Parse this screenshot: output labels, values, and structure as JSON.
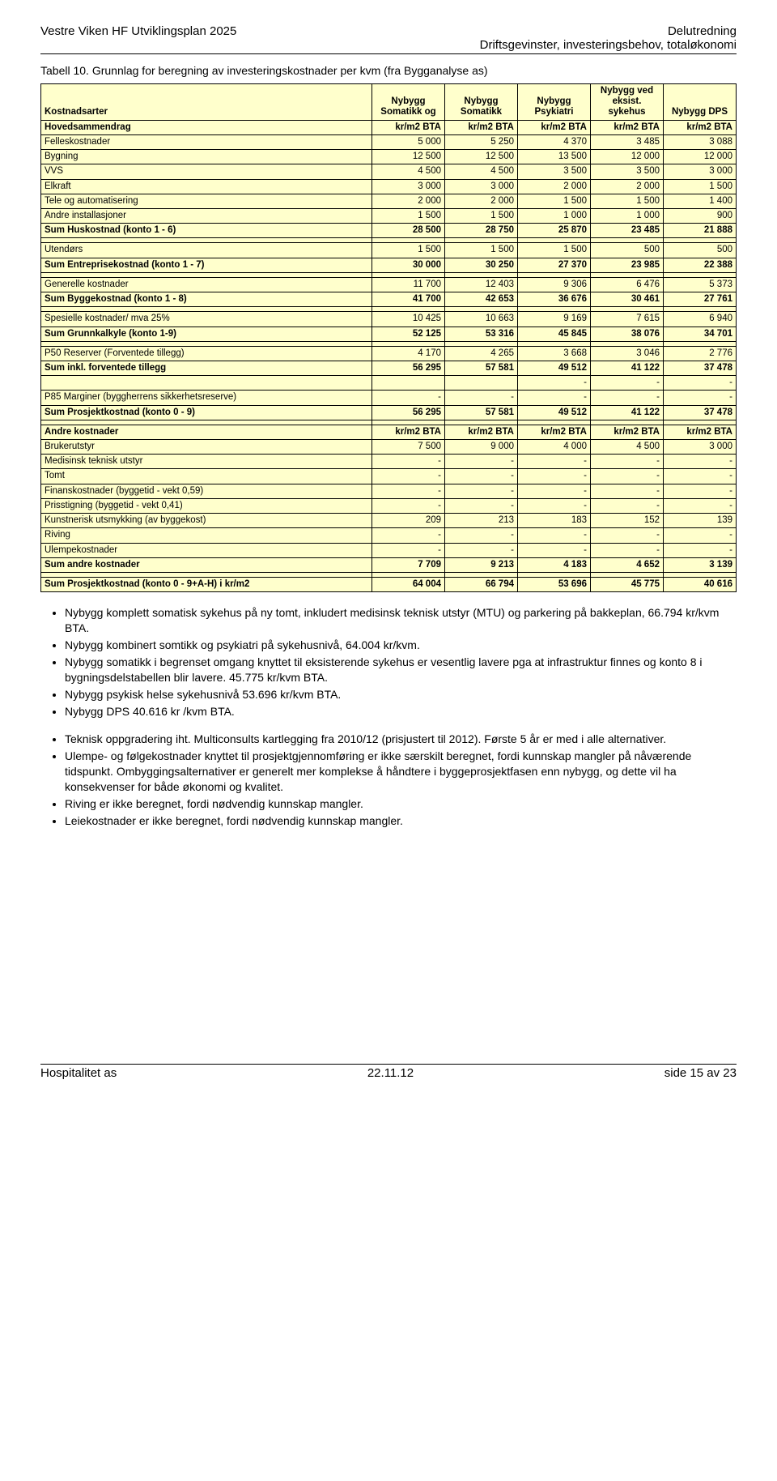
{
  "header": {
    "left_line1": "Vestre Viken HF Utviklingsplan 2025",
    "right_line1": "Delutredning",
    "right_line2": "Driftsgevinster, investeringsbehov, totaløkonomi"
  },
  "caption": "Tabell 10. Grunnlag for beregning av investeringskostnader per kvm (fra Bygganalyse as)",
  "table": {
    "bg_color": "#ffffcc",
    "border_color": "#000000",
    "col_label": "Kostnadsarter",
    "cols": [
      "Nybygg Somatikk og",
      "Nybygg Somatikk",
      "Nybygg Psykiatri",
      "Nybygg ved eksist. sykehus",
      "Nybygg DPS"
    ],
    "sections": [
      {
        "type": "header",
        "label": "Hovedsammendrag",
        "cells": [
          "kr/m2 BTA",
          "kr/m2 BTA",
          "kr/m2 BTA",
          "kr/m2 BTA",
          "kr/m2 BTA"
        ]
      },
      {
        "label": "Felleskostnader",
        "cells": [
          "5 000",
          "5 250",
          "4 370",
          "3 485",
          "3 088"
        ]
      },
      {
        "label": "Bygning",
        "cells": [
          "12 500",
          "12 500",
          "13 500",
          "12 000",
          "12 000"
        ]
      },
      {
        "label": "VVS",
        "cells": [
          "4 500",
          "4 500",
          "3 500",
          "3 500",
          "3 000"
        ]
      },
      {
        "label": "Elkraft",
        "cells": [
          "3 000",
          "3 000",
          "2 000",
          "2 000",
          "1 500"
        ]
      },
      {
        "label": "Tele og automatisering",
        "cells": [
          "2 000",
          "2 000",
          "1 500",
          "1 500",
          "1 400"
        ]
      },
      {
        "label": "Andre installasjoner",
        "cells": [
          "1 500",
          "1 500",
          "1 000",
          "1 000",
          "900"
        ]
      },
      {
        "type": "sum",
        "label": "Sum Huskostnad (konto 1 - 6)",
        "cells": [
          "28 500",
          "28 750",
          "25 870",
          "23 485",
          "21 888"
        ]
      },
      {
        "type": "spacer"
      },
      {
        "label": "Utendørs",
        "cells": [
          "1 500",
          "1 500",
          "1 500",
          "500",
          "500"
        ]
      },
      {
        "type": "sum",
        "label": "Sum Entreprisekostnad (konto 1 - 7)",
        "cells": [
          "30 000",
          "30 250",
          "27 370",
          "23 985",
          "22 388"
        ]
      },
      {
        "type": "spacer"
      },
      {
        "label": "Generelle kostnader",
        "cells": [
          "11 700",
          "12 403",
          "9 306",
          "6 476",
          "5 373"
        ]
      },
      {
        "type": "sum",
        "label": "Sum Byggekostnad (konto 1 - 8)",
        "cells": [
          "41 700",
          "42 653",
          "36 676",
          "30 461",
          "27 761"
        ]
      },
      {
        "type": "spacer"
      },
      {
        "label": "Spesielle kostnader/ mva 25%",
        "cells": [
          "10 425",
          "10 663",
          "9 169",
          "7 615",
          "6 940"
        ]
      },
      {
        "type": "sum",
        "label": "Sum Grunnkalkyle (konto 1-9)",
        "cells": [
          "52 125",
          "53 316",
          "45 845",
          "38 076",
          "34 701"
        ]
      },
      {
        "type": "spacer"
      },
      {
        "label": "P50 Reserver (Forventede tillegg)",
        "cells": [
          "4 170",
          "4 265",
          "3 668",
          "3 046",
          "2 776"
        ]
      },
      {
        "type": "sum",
        "label": "Sum inkl. forventede tillegg",
        "cells": [
          "56 295",
          "57 581",
          "49 512",
          "41 122",
          "37 478"
        ]
      },
      {
        "label": "",
        "cells": [
          "",
          "",
          "-",
          "-",
          "-"
        ]
      },
      {
        "label": "P85 Marginer (byggherrens sikkerhetsreserve)",
        "cells": [
          "-",
          "-",
          "-",
          "-",
          "-"
        ]
      },
      {
        "type": "sum",
        "label": "Sum Prosjektkostnad (konto 0 - 9)",
        "cells": [
          "56 295",
          "57 581",
          "49 512",
          "41 122",
          "37 478"
        ]
      },
      {
        "type": "spacer"
      },
      {
        "type": "header",
        "label": "Andre kostnader",
        "cells": [
          "kr/m2 BTA",
          "kr/m2 BTA",
          "kr/m2 BTA",
          "kr/m2 BTA",
          "kr/m2 BTA"
        ]
      },
      {
        "label": "Brukerutstyr",
        "cells": [
          "7 500",
          "9 000",
          "4 000",
          "4 500",
          "3 000"
        ]
      },
      {
        "label": "Medisinsk teknisk utstyr",
        "cells": [
          "-",
          "-",
          "-",
          "-",
          "-"
        ]
      },
      {
        "label": "Tomt",
        "cells": [
          "-",
          "-",
          "-",
          "-",
          "-"
        ]
      },
      {
        "label": "Finanskostnader (byggetid - vekt 0,59)",
        "cells": [
          "-",
          "-",
          "-",
          "-",
          "-"
        ]
      },
      {
        "label": "Prisstigning (byggetid - vekt 0,41)",
        "cells": [
          "-",
          "-",
          "-",
          "-",
          "-"
        ]
      },
      {
        "label": "Kunstnerisk utsmykking (av byggekost)",
        "cells": [
          "209",
          "213",
          "183",
          "152",
          "139"
        ]
      },
      {
        "label": "Riving",
        "cells": [
          "-",
          "-",
          "-",
          "-",
          "-"
        ]
      },
      {
        "label": "Ulempekostnader",
        "cells": [
          "-",
          "-",
          "-",
          "-",
          "-"
        ]
      },
      {
        "type": "sum",
        "label": "Sum andre kostnader",
        "cells": [
          "7 709",
          "9 213",
          "4 183",
          "4 652",
          "3 139"
        ]
      },
      {
        "type": "spacer"
      },
      {
        "type": "sum",
        "label": "Sum Prosjektkostnad (konto 0 - 9+A-H) i kr/m2",
        "cells": [
          "64 004",
          "66 794",
          "53 696",
          "45 775",
          "40 616"
        ]
      }
    ]
  },
  "bullets1": [
    "Nybygg komplett somatisk sykehus på ny tomt, inkludert medisinsk teknisk utstyr (MTU) og parkering på bakkeplan, 66.794 kr/kvm BTA.",
    "Nybygg kombinert somtikk og psykiatri på sykehusnivå, 64.004 kr/kvm.",
    "Nybygg somatikk i begrenset omgang knyttet til eksisterende sykehus er vesentlig lavere pga at infrastruktur finnes og konto 8 i bygningsdelstabellen blir lavere. 45.775 kr/kvm BTA.",
    "Nybygg psykisk helse sykehusnivå 53.696 kr/kvm BTA.",
    "Nybygg DPS 40.616 kr /kvm BTA."
  ],
  "bullets2": [
    "Teknisk oppgradering iht. Multiconsults kartlegging fra 2010/12 (prisjustert til 2012). Første 5 år er med i alle alternativer.",
    "Ulempe- og følgekostnader knyttet til prosjektgjennomføring er ikke særskilt beregnet, fordi kunnskap mangler på nåværende tidspunkt. Ombyggingsalternativer er generelt mer komplekse å håndtere i byggeprosjektfasen enn nybygg, og dette vil ha konsekvenser for både økonomi og kvalitet.",
    "Riving er ikke beregnet, fordi nødvendig kunnskap mangler.",
    "Leiekostnader er ikke beregnet, fordi nødvendig kunnskap mangler."
  ],
  "footer": {
    "left": "Hospitalitet as",
    "center": "22.11.12",
    "right": "side 15 av 23"
  }
}
